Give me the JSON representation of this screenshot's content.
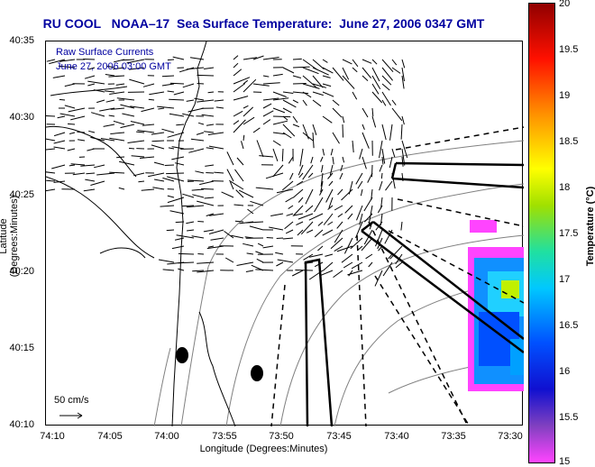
{
  "title": "RU COOL   NOAA–17  Sea Surface Temperature:  June 27, 2006 0347 GMT",
  "legend_line1": "Raw Surface Currents",
  "legend_line2": "June 27, 2006 03:00 GMT",
  "scale_label": "50 cm/s",
  "xlabel": "Longitude (Degrees:Minutes)",
  "ylabel": "Latitude (Degrees:Minutes)",
  "colorbar_label": "Temperature (°C)",
  "x_ticks": [
    "74:10",
    "74:05",
    "74:00",
    "73:55",
    "73:50",
    "73:45",
    "73:40",
    "73:35",
    "73:30"
  ],
  "y_ticks": [
    "40:35",
    "40:30",
    "40:25",
    "40:20",
    "40:15",
    "40:10"
  ],
  "colorbar_ticks": [
    "20",
    "19.5",
    "19",
    "18.5",
    "18",
    "17.5",
    "17",
    "16.5",
    "16",
    "15.5",
    "15"
  ],
  "colors": {
    "title": "#0000a0",
    "land_contour": "#000000",
    "bathymetry": "#808080"
  }
}
